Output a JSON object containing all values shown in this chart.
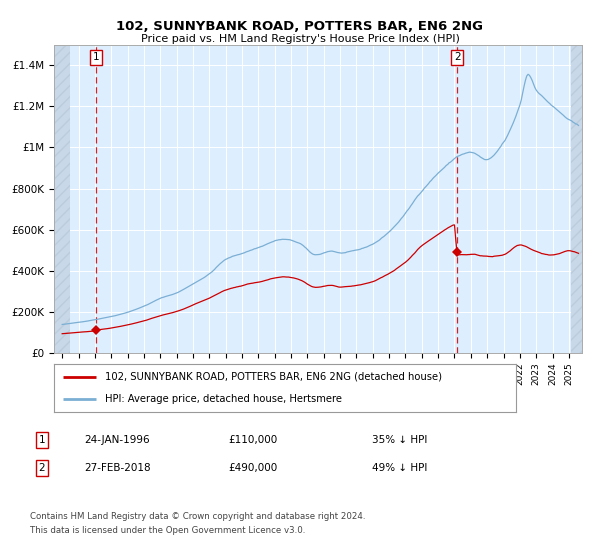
{
  "title": "102, SUNNYBANK ROAD, POTTERS BAR, EN6 2NG",
  "subtitle": "Price paid vs. HM Land Registry's House Price Index (HPI)",
  "ylim": [
    0,
    1500000
  ],
  "yticks": [
    0,
    200000,
    400000,
    600000,
    800000,
    1000000,
    1200000,
    1400000
  ],
  "ytick_labels": [
    "£0",
    "£200K",
    "£400K",
    "£600K",
    "£800K",
    "£1M",
    "£1.2M",
    "£1.4M"
  ],
  "xmin": 1993.5,
  "xmax": 2025.8,
  "hpi_color": "#7bafd4",
  "price_color": "#cc0000",
  "bg_color": "#ddeeff",
  "grid_color": "#ffffff",
  "transaction1_date": 1996.07,
  "transaction1_price": 110000,
  "transaction1_label": "1",
  "transaction1_text": "24-JAN-1996",
  "transaction1_price_text": "£110,000",
  "transaction1_hpi_text": "35% ↓ HPI",
  "transaction2_date": 2018.16,
  "transaction2_price": 490000,
  "transaction2_label": "2",
  "transaction2_text": "27-FEB-2018",
  "transaction2_price_text": "£490,000",
  "transaction2_hpi_text": "49% ↓ HPI",
  "legend_line1": "102, SUNNYBANK ROAD, POTTERS BAR, EN6 2NG (detached house)",
  "legend_line2": "HPI: Average price, detached house, Hertsmere",
  "footer1": "Contains HM Land Registry data © Crown copyright and database right 2024.",
  "footer2": "This data is licensed under the Open Government Licence v3.0."
}
